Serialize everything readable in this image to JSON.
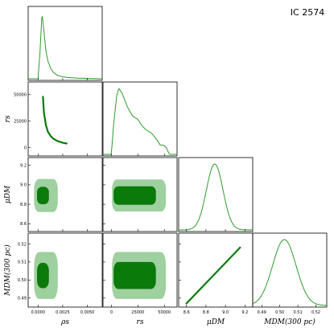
{
  "title": "IC 2574",
  "colors": {
    "line": "#2e9a2e",
    "inner": "#0a7a0a",
    "outer": "#9fd09f"
  },
  "chart_data": {
    "type": "corner",
    "title": "IC 2574",
    "parameters": [
      {
        "key": "rho_s",
        "label": "ρs",
        "range": [
          -0.001,
          0.0065
        ],
        "ticks": [
          0,
          0.0025,
          0.005
        ],
        "tick_labels": [
          "0.0000",
          "0.0025",
          "0.0050"
        ]
      },
      {
        "key": "r_s",
        "label": "rs",
        "range": [
          -8000,
          62000
        ],
        "ticks": [
          0,
          25000,
          50000
        ],
        "tick_labels": [
          "0",
          "25000",
          "50000"
        ]
      },
      {
        "key": "mu_DM",
        "label": "μDM",
        "range": [
          8.52,
          9.28
        ],
        "ticks": [
          8.6,
          8.8,
          9.0,
          9.2
        ],
        "tick_labels": [
          "8.6",
          "8.8",
          "9.0",
          "9.2"
        ]
      },
      {
        "key": "M_DM_300pc",
        "label": "MDM(300 pc)",
        "range": [
          0.485,
          0.526
        ],
        "ticks": [
          0.49,
          0.5,
          0.51,
          0.52
        ],
        "tick_labels": [
          "0.49",
          "0.50",
          "0.51",
          "0.52"
        ]
      }
    ],
    "marginals": [
      {
        "param": "rho_s",
        "x": [
          0,
          0.0002,
          0.0004,
          0.0006,
          0.0008,
          0.001,
          0.0013,
          0.0016,
          0.002,
          0.0025,
          0.003,
          0.004,
          0.005,
          0.006
        ],
        "density": [
          0,
          0.4,
          1.0,
          0.72,
          0.42,
          0.27,
          0.15,
          0.09,
          0.05,
          0.03,
          0.02,
          0.01,
          0.005,
          0.002
        ]
      },
      {
        "param": "r_s",
        "x": [
          0,
          2000,
          5000,
          7000,
          10000,
          15000,
          20000,
          25000,
          28000,
          32000,
          38000,
          43000,
          46000,
          49000,
          52000,
          53500,
          55000
        ],
        "density": [
          0.03,
          0.45,
          0.9,
          1.0,
          0.93,
          0.72,
          0.58,
          0.53,
          0.45,
          0.38,
          0.32,
          0.22,
          0.14,
          0.14,
          0.1,
          0.04,
          0.0
        ]
      },
      {
        "param": "mu_DM",
        "gaussian": {
          "mean": 8.89,
          "sd": 0.085
        }
      },
      {
        "param": "M_DM_300pc",
        "gaussian": {
          "mean": 0.5025,
          "sd": 0.0065
        }
      }
    ],
    "joint_rho_r": {
      "x": [
        0.0005,
        0.0006,
        0.0008,
        0.001,
        0.0013,
        0.0016,
        0.002,
        0.0025,
        0.0029
      ],
      "y": [
        48000,
        33000,
        21000,
        15000,
        10500,
        8000,
        6000,
        4500,
        3800
      ]
    },
    "joint_mu_M": {
      "x": [
        8.6,
        9.15
      ],
      "y": [
        0.487,
        0.518
      ]
    },
    "contours": [
      {
        "x": "rho_s",
        "y": "mu_DM",
        "inner": {
          "cx": 0.0005,
          "w": 0.0012,
          "cy": 8.89,
          "h": 0.18
        },
        "outer": {
          "cx": 0.0008,
          "w": 0.0024,
          "cy": 8.89,
          "h": 0.34
        }
      },
      {
        "x": "r_s",
        "y": "mu_DM",
        "inner": {
          "cx": 22000,
          "w": 40000,
          "cy": 8.89,
          "h": 0.19
        },
        "outer": {
          "cx": 26000,
          "w": 51000,
          "cy": 8.89,
          "h": 0.33
        }
      },
      {
        "x": "rho_s",
        "y": "M_DM_300pc",
        "inner": {
          "cx": 0.0005,
          "w": 0.0012,
          "cy": 0.5025,
          "h": 0.014
        },
        "outer": {
          "cx": 0.0008,
          "w": 0.0024,
          "cy": 0.5025,
          "h": 0.026
        }
      },
      {
        "x": "r_s",
        "y": "M_DM_300pc",
        "inner": {
          "cx": 22000,
          "w": 40000,
          "cy": 0.5025,
          "h": 0.015
        },
        "outer": {
          "cx": 26000,
          "w": 51000,
          "cy": 0.5025,
          "h": 0.026
        }
      }
    ]
  }
}
